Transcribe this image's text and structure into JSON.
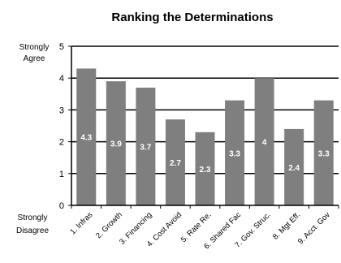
{
  "chart_data": {
    "type": "bar",
    "title": "Ranking the Determinations",
    "categories": [
      "1. Infras",
      "2. Growth",
      "3. Financing",
      "4. Cost Avoid",
      "5. Rate Re.",
      "6. Shared Fac",
      "7. Gov. Struc.",
      "8. Mgt Eff.",
      "9. Acct. Gov"
    ],
    "values": [
      4.3,
      3.9,
      3.7,
      2.7,
      2.3,
      3.3,
      4,
      2.4,
      3.3
    ],
    "value_labels": [
      "4.3",
      "3.9",
      "3.7",
      "2.7",
      "2.3",
      "3.3",
      "4",
      "2.4",
      "3.3"
    ],
    "ylim": [
      0,
      5
    ],
    "yticks": [
      "0",
      "1",
      "2",
      "3",
      "4",
      "5"
    ],
    "y_top_label": [
      "Strongly",
      "Agree"
    ],
    "y_bottom_label": [
      "Strongly",
      "Disagree"
    ],
    "grid": true,
    "colors": {
      "bar": "#7f7f7f",
      "value_label": "#ffffff",
      "grid": "#000000"
    }
  }
}
